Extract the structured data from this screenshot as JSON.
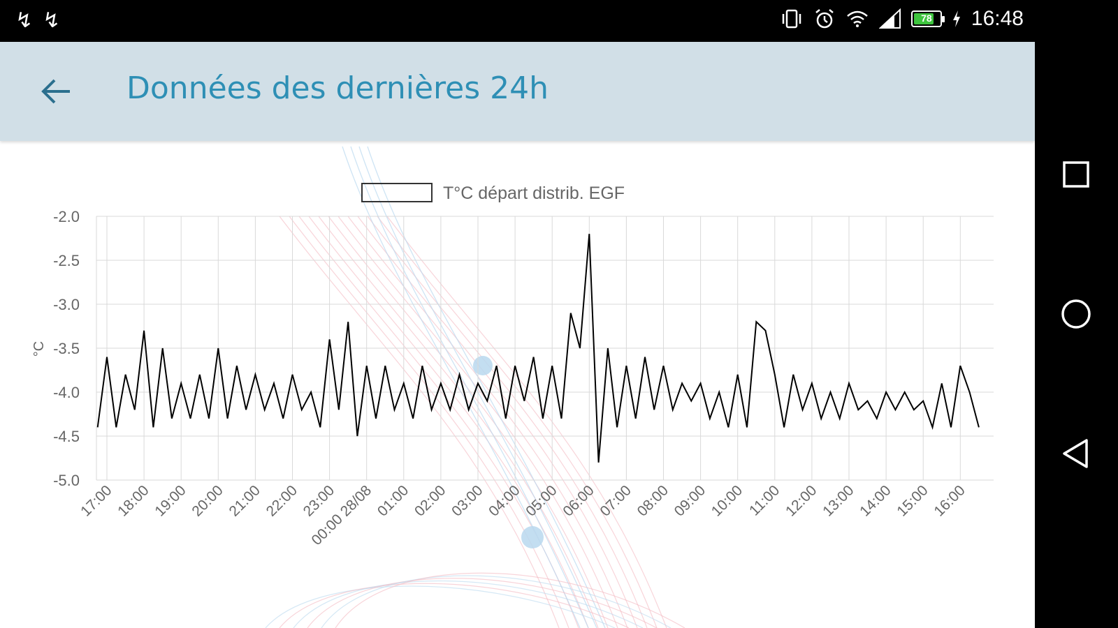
{
  "status_bar": {
    "left_icons": [
      "usb-icon",
      "usb-icon"
    ],
    "right_icons": [
      "vibrate-icon",
      "alarm-icon",
      "wifi-icon",
      "signal-icon"
    ],
    "battery_level": "78",
    "battery_charging": true,
    "time": "16:48"
  },
  "toolbar": {
    "back_icon": "arrow-left-icon",
    "title": "Données des dernières 24h",
    "background": "#d1dfe7",
    "title_color": "#2e8fb5"
  },
  "nav_bar": {
    "recents_icon": "square-icon",
    "home_icon": "circle-icon",
    "back_icon": "triangle-left-icon"
  },
  "chart_data": {
    "type": "line",
    "legend": [
      "T°C départ distrib. EGF"
    ],
    "legend_position": "top",
    "ylabel": "°C",
    "xlabel": "",
    "ylim": [
      -5.0,
      -2.0
    ],
    "yticks": [
      "-2.0",
      "-2.5",
      "-3.0",
      "-3.5",
      "-4.0",
      "-4.5",
      "-5.0"
    ],
    "xticks": [
      "17:00",
      "18:00",
      "19:00",
      "20:00",
      "21:00",
      "22:00",
      "23:00",
      "00:00 28/08",
      "01:00",
      "02:00",
      "03:00",
      "04:00",
      "05:00",
      "06:00",
      "07:00",
      "08:00",
      "09:00",
      "10:00",
      "11:00",
      "12:00",
      "13:00",
      "14:00",
      "15:00",
      "16:00"
    ],
    "grid": true,
    "series": [
      {
        "name": "T°C départ distrib. EGF",
        "color": "#000000",
        "x": [
          16.75,
          17.0,
          17.25,
          17.5,
          17.75,
          18.0,
          18.25,
          18.5,
          18.75,
          19.0,
          19.25,
          19.5,
          19.75,
          20.0,
          20.25,
          20.5,
          20.75,
          21.0,
          21.25,
          21.5,
          21.75,
          22.0,
          22.25,
          22.5,
          22.75,
          23.0,
          23.25,
          23.5,
          23.75,
          24.0,
          24.25,
          24.5,
          24.75,
          25.0,
          25.25,
          25.5,
          25.75,
          26.0,
          26.25,
          26.5,
          26.75,
          27.0,
          27.25,
          27.5,
          27.75,
          28.0,
          28.25,
          28.5,
          28.75,
          29.0,
          29.25,
          29.5,
          29.75,
          30.0,
          30.25,
          30.5,
          30.75,
          31.0,
          31.25,
          31.5,
          31.75,
          32.0,
          32.25,
          32.5,
          32.75,
          33.0,
          33.25,
          33.5,
          33.75,
          34.0,
          34.25,
          34.5,
          34.75,
          35.0,
          35.25,
          35.5,
          35.75,
          36.0,
          36.25,
          36.5,
          36.75,
          37.0,
          37.25,
          37.5,
          37.75,
          38.0,
          38.25,
          38.5,
          38.75,
          39.0,
          39.25,
          39.5,
          39.75,
          40.0,
          40.25,
          40.5
        ],
        "y": [
          -4.4,
          -3.6,
          -4.4,
          -3.8,
          -4.2,
          -3.3,
          -4.4,
          -3.5,
          -4.3,
          -3.9,
          -4.3,
          -3.8,
          -4.3,
          -3.5,
          -4.3,
          -3.7,
          -4.2,
          -3.8,
          -4.2,
          -3.9,
          -4.3,
          -3.8,
          -4.2,
          -4.0,
          -4.4,
          -3.4,
          -4.2,
          -3.2,
          -4.5,
          -3.7,
          -4.3,
          -3.7,
          -4.2,
          -3.9,
          -4.3,
          -3.7,
          -4.2,
          -3.9,
          -4.2,
          -3.8,
          -4.2,
          -3.9,
          -4.1,
          -3.7,
          -4.3,
          -3.7,
          -4.1,
          -3.6,
          -4.3,
          -3.7,
          -4.3,
          -3.1,
          -3.5,
          -2.2,
          -4.8,
          -3.5,
          -4.4,
          -3.7,
          -4.3,
          -3.6,
          -4.2,
          -3.7,
          -4.2,
          -3.9,
          -4.1,
          -3.9,
          -4.3,
          -4.0,
          -4.4,
          -3.8,
          -4.4,
          -3.2,
          -3.3,
          -3.8,
          -4.4,
          -3.8,
          -4.2,
          -3.9,
          -4.3,
          -4.0,
          -4.3,
          -3.9,
          -4.2,
          -4.1,
          -4.3,
          -4.0,
          -4.2,
          -4.0,
          -4.2,
          -4.1,
          -4.4,
          -3.9,
          -4.4,
          -3.7,
          -4.0,
          -4.4
        ]
      }
    ]
  }
}
